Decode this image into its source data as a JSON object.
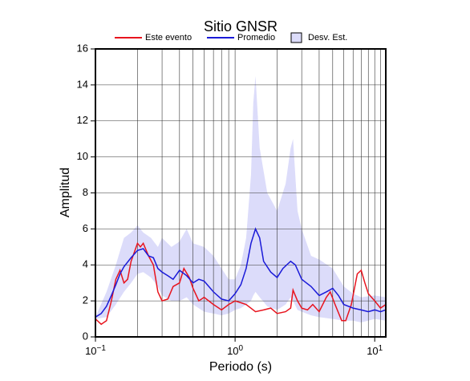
{
  "chart_data": {
    "type": "line",
    "title": "Sitio GNSR",
    "x_label": "Periodo (s)",
    "y_label": "Amplitud",
    "xscale": "log",
    "xlim": [
      0.1,
      12
    ],
    "ylim": [
      0,
      16
    ],
    "xticks": [
      {
        "value": 0.1,
        "label": "10",
        "exponent": "−1"
      },
      {
        "value": 1,
        "label": "10",
        "exponent": "0"
      },
      {
        "value": 10,
        "label": "10",
        "exponent": "1"
      }
    ],
    "xminor": [
      0.2,
      0.3,
      0.4,
      0.5,
      0.6,
      0.7,
      0.8,
      0.9,
      2,
      3,
      4,
      5,
      6,
      7,
      8,
      9,
      11
    ],
    "yticks": [
      0,
      2,
      4,
      6,
      8,
      10,
      12,
      14,
      16
    ],
    "grid": true,
    "series": [
      {
        "name": "Este evento",
        "color": "#e8141e",
        "x": [
          0.1,
          0.11,
          0.12,
          0.13,
          0.14,
          0.15,
          0.16,
          0.17,
          0.18,
          0.2,
          0.21,
          0.22,
          0.24,
          0.26,
          0.28,
          0.3,
          0.33,
          0.36,
          0.4,
          0.43,
          0.47,
          0.5,
          0.55,
          0.6,
          0.7,
          0.8,
          0.9,
          1.0,
          1.1,
          1.2,
          1.4,
          1.6,
          1.8,
          2.0,
          2.3,
          2.5,
          2.6,
          2.8,
          3.0,
          3.3,
          3.6,
          4.0,
          4.5,
          4.8,
          5.2,
          5.8,
          6.2,
          6.8,
          7.5,
          8.0,
          8.5,
          9.0,
          10,
          11,
          12
        ],
        "values": [
          1.0,
          0.7,
          0.9,
          2.0,
          3.2,
          3.7,
          3.0,
          3.2,
          4.2,
          5.2,
          5.0,
          5.2,
          4.5,
          4.0,
          2.5,
          2.0,
          2.1,
          2.8,
          3.0,
          3.8,
          3.3,
          2.7,
          2.0,
          2.2,
          1.8,
          1.5,
          1.8,
          2.0,
          1.9,
          1.8,
          1.4,
          1.5,
          1.6,
          1.3,
          1.4,
          1.6,
          2.6,
          2.0,
          1.6,
          1.5,
          1.8,
          1.4,
          2.2,
          2.5,
          1.8,
          0.9,
          0.9,
          1.8,
          3.5,
          3.7,
          3.0,
          2.4,
          2.0,
          1.6,
          1.8
        ]
      },
      {
        "name": "Promedio",
        "color": "#1a1ad8",
        "x": [
          0.1,
          0.11,
          0.12,
          0.13,
          0.14,
          0.15,
          0.16,
          0.18,
          0.2,
          0.22,
          0.24,
          0.26,
          0.28,
          0.3,
          0.33,
          0.36,
          0.4,
          0.45,
          0.5,
          0.55,
          0.6,
          0.7,
          0.8,
          0.9,
          1.0,
          1.1,
          1.2,
          1.3,
          1.4,
          1.5,
          1.6,
          1.8,
          2.0,
          2.2,
          2.5,
          2.7,
          3.0,
          3.5,
          4.0,
          4.5,
          5.0,
          5.5,
          6.0,
          7.0,
          8.0,
          9.0,
          10,
          11,
          12
        ],
        "values": [
          1.1,
          1.3,
          1.7,
          2.3,
          2.9,
          3.5,
          3.9,
          4.4,
          4.8,
          4.9,
          4.5,
          4.4,
          3.8,
          3.6,
          3.4,
          3.2,
          3.7,
          3.4,
          3.0,
          3.2,
          3.1,
          2.5,
          2.1,
          2.0,
          2.4,
          2.9,
          3.8,
          5.2,
          6.0,
          5.5,
          4.2,
          3.6,
          3.3,
          3.8,
          4.2,
          4.0,
          3.2,
          2.8,
          2.3,
          2.5,
          2.7,
          2.3,
          1.8,
          1.6,
          1.5,
          1.4,
          1.5,
          1.4,
          1.5
        ]
      },
      {
        "name": "Desv. Est.",
        "color": "#dcdcfa",
        "band": true,
        "x": [
          0.1,
          0.12,
          0.14,
          0.16,
          0.18,
          0.2,
          0.22,
          0.25,
          0.28,
          0.3,
          0.35,
          0.4,
          0.45,
          0.5,
          0.6,
          0.7,
          0.8,
          0.9,
          1.0,
          1.1,
          1.2,
          1.3,
          1.35,
          1.4,
          1.5,
          1.7,
          2.0,
          2.3,
          2.5,
          2.6,
          2.8,
          3.0,
          3.5,
          4.0,
          5.0,
          6.0,
          7.0,
          8.0,
          10,
          12
        ],
        "upper": [
          1.1,
          2.5,
          4.0,
          5.5,
          5.8,
          6.2,
          5.8,
          5.5,
          5.0,
          5.5,
          5.0,
          5.3,
          6.0,
          5.2,
          5.0,
          4.5,
          3.8,
          3.2,
          3.2,
          4.0,
          5.5,
          9.0,
          13.0,
          14.5,
          10.5,
          8.0,
          7.0,
          8.5,
          10.5,
          11.0,
          7.0,
          6.0,
          4.5,
          4.3,
          3.8,
          2.8,
          2.4,
          2.2,
          2.3,
          2.2
        ],
        "lower": [
          1.0,
          1.1,
          1.8,
          2.5,
          3.0,
          3.5,
          3.6,
          3.3,
          2.8,
          2.3,
          2.0,
          2.0,
          2.2,
          1.8,
          1.4,
          1.3,
          1.2,
          1.3,
          1.5,
          1.6,
          1.8,
          2.0,
          2.3,
          2.5,
          2.2,
          1.7,
          1.5,
          1.8,
          2.2,
          2.0,
          1.5,
          1.4,
          1.2,
          1.1,
          1.0,
          0.9,
          0.9,
          0.8,
          1.0,
          0.9
        ]
      }
    ]
  }
}
